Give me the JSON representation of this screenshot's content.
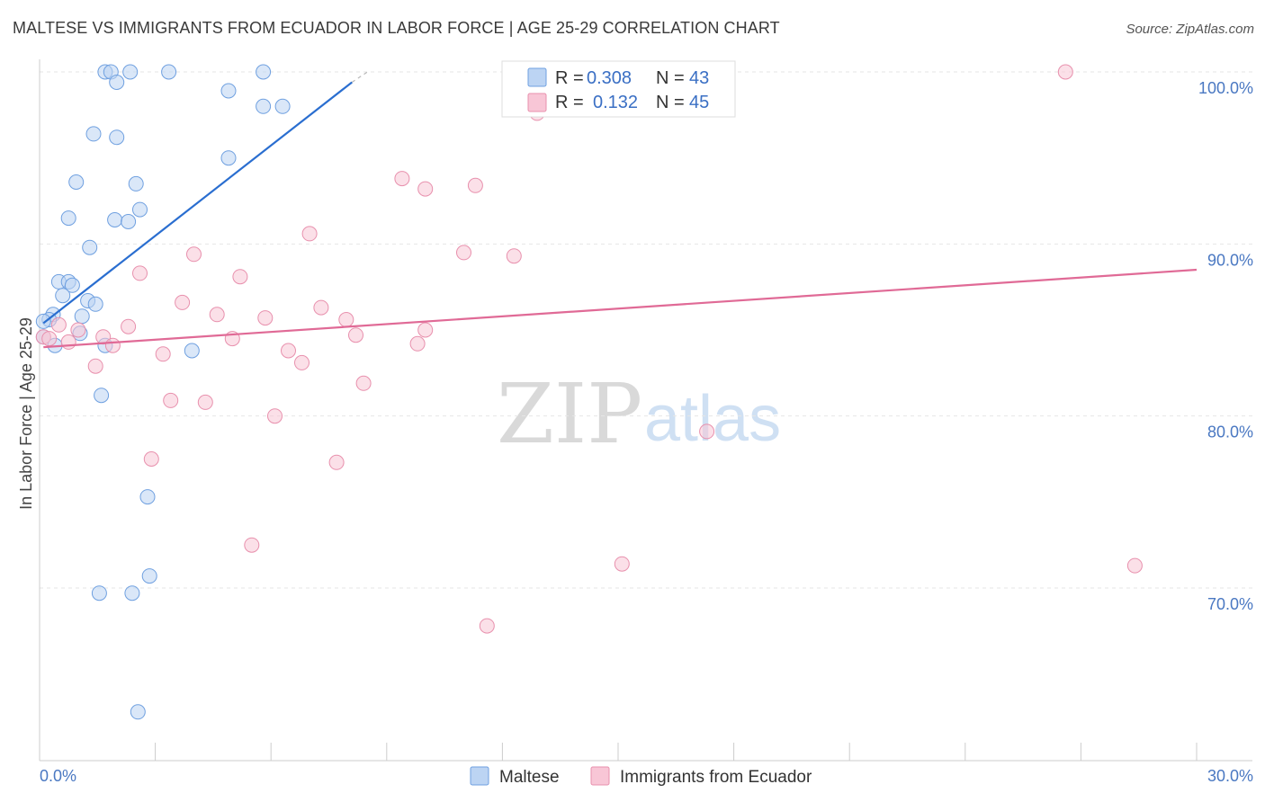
{
  "title": "MALTESE VS IMMIGRANTS FROM ECUADOR IN LABOR FORCE | AGE 25-29 CORRELATION CHART",
  "source": "Source: ZipAtlas.com",
  "watermark": {
    "zip": "ZIP",
    "atlas": "atlas"
  },
  "chart_data": {
    "type": "scatter",
    "title": "MALTESE VS IMMIGRANTS FROM ECUADOR IN LABOR FORCE | AGE 25-29 CORRELATION CHART",
    "xlabel": "",
    "ylabel": "In Labor Force | Age 25-29",
    "xlim": [
      0,
      30
    ],
    "ylim": [
      60.5,
      101.5
    ],
    "x_tick_labels": [
      "0.0%",
      "30.0%"
    ],
    "y_ticks": [
      100,
      90,
      80,
      70
    ],
    "y_tick_labels": [
      "100.0%",
      "90.0%",
      "80.0%",
      "70.0%"
    ],
    "legend": [
      {
        "name": "Maltese",
        "r_label": "R =",
        "r": "0.308",
        "n_label": "N =",
        "n": "43",
        "color": "#6fa0e0",
        "fill": "#bcd4f3"
      },
      {
        "name": "Immigrants from Ecuador",
        "r_label": "R =",
        "r": "0.132",
        "n_label": "N =",
        "n": "45",
        "color": "#e890ad",
        "fill": "#f8c6d6"
      }
    ],
    "series": [
      {
        "name": "Maltese",
        "color": "#6fa0e0",
        "trend": {
          "x": [
            0.1,
            8.1
          ],
          "y": [
            85.4,
            99.4
          ],
          "color": "#2a6ed0"
        },
        "points": [
          [
            1.7,
            100
          ],
          [
            1.85,
            100
          ],
          [
            2.35,
            100
          ],
          [
            3.35,
            100
          ],
          [
            5.8,
            100
          ],
          [
            2.0,
            99.4
          ],
          [
            4.9,
            98.9
          ],
          [
            5.8,
            98.0
          ],
          [
            6.3,
            98.0
          ],
          [
            1.4,
            96.4
          ],
          [
            2.0,
            96.2
          ],
          [
            4.9,
            95.0
          ],
          [
            0.95,
            93.6
          ],
          [
            2.5,
            93.5
          ],
          [
            2.6,
            92.0
          ],
          [
            0.75,
            91.5
          ],
          [
            1.95,
            91.4
          ],
          [
            2.3,
            91.3
          ],
          [
            1.3,
            89.8
          ],
          [
            0.5,
            87.8
          ],
          [
            0.75,
            87.8
          ],
          [
            0.85,
            87.6
          ],
          [
            0.6,
            87.0
          ],
          [
            1.25,
            86.7
          ],
          [
            1.45,
            86.5
          ],
          [
            1.1,
            85.8
          ],
          [
            0.35,
            85.9
          ],
          [
            0.25,
            85.6
          ],
          [
            0.1,
            85.5
          ],
          [
            1.05,
            84.8
          ],
          [
            0.1,
            84.6
          ],
          [
            1.7,
            84.1
          ],
          [
            0.4,
            84.1
          ],
          [
            3.95,
            83.8
          ],
          [
            1.6,
            81.2
          ],
          [
            2.8,
            75.3
          ],
          [
            2.85,
            70.7
          ],
          [
            1.55,
            69.7
          ],
          [
            2.4,
            69.7
          ],
          [
            2.55,
            62.8
          ]
        ]
      },
      {
        "name": "Immigrants from Ecuador",
        "color": "#e890ad",
        "trend": {
          "x": [
            0.1,
            30
          ],
          "y": [
            84.0,
            88.5
          ],
          "color": "#e06a96"
        },
        "points": [
          [
            15.5,
            100
          ],
          [
            26.6,
            100
          ],
          [
            12.9,
            97.6
          ],
          [
            9.4,
            93.8
          ],
          [
            10.0,
            93.2
          ],
          [
            11.3,
            93.4
          ],
          [
            7.0,
            90.6
          ],
          [
            4.0,
            89.4
          ],
          [
            11.0,
            89.5
          ],
          [
            12.3,
            89.3
          ],
          [
            2.6,
            88.3
          ],
          [
            5.2,
            88.1
          ],
          [
            3.7,
            86.6
          ],
          [
            7.3,
            86.3
          ],
          [
            4.6,
            85.9
          ],
          [
            5.85,
            85.7
          ],
          [
            7.95,
            85.6
          ],
          [
            2.3,
            85.2
          ],
          [
            0.5,
            85.3
          ],
          [
            10.0,
            85.0
          ],
          [
            1.0,
            85.0
          ],
          [
            1.65,
            84.6
          ],
          [
            5.0,
            84.5
          ],
          [
            8.2,
            84.7
          ],
          [
            0.1,
            84.6
          ],
          [
            0.25,
            84.5
          ],
          [
            0.75,
            84.3
          ],
          [
            9.8,
            84.2
          ],
          [
            1.9,
            84.1
          ],
          [
            6.45,
            83.8
          ],
          [
            3.2,
            83.6
          ],
          [
            6.8,
            83.1
          ],
          [
            1.45,
            82.9
          ],
          [
            8.4,
            81.9
          ],
          [
            3.4,
            80.9
          ],
          [
            4.3,
            80.8
          ],
          [
            6.1,
            80.0
          ],
          [
            17.3,
            79.1
          ],
          [
            2.9,
            77.5
          ],
          [
            7.7,
            77.3
          ],
          [
            5.5,
            72.5
          ],
          [
            15.1,
            71.4
          ],
          [
            28.4,
            71.3
          ],
          [
            11.6,
            67.8
          ]
        ]
      }
    ]
  }
}
